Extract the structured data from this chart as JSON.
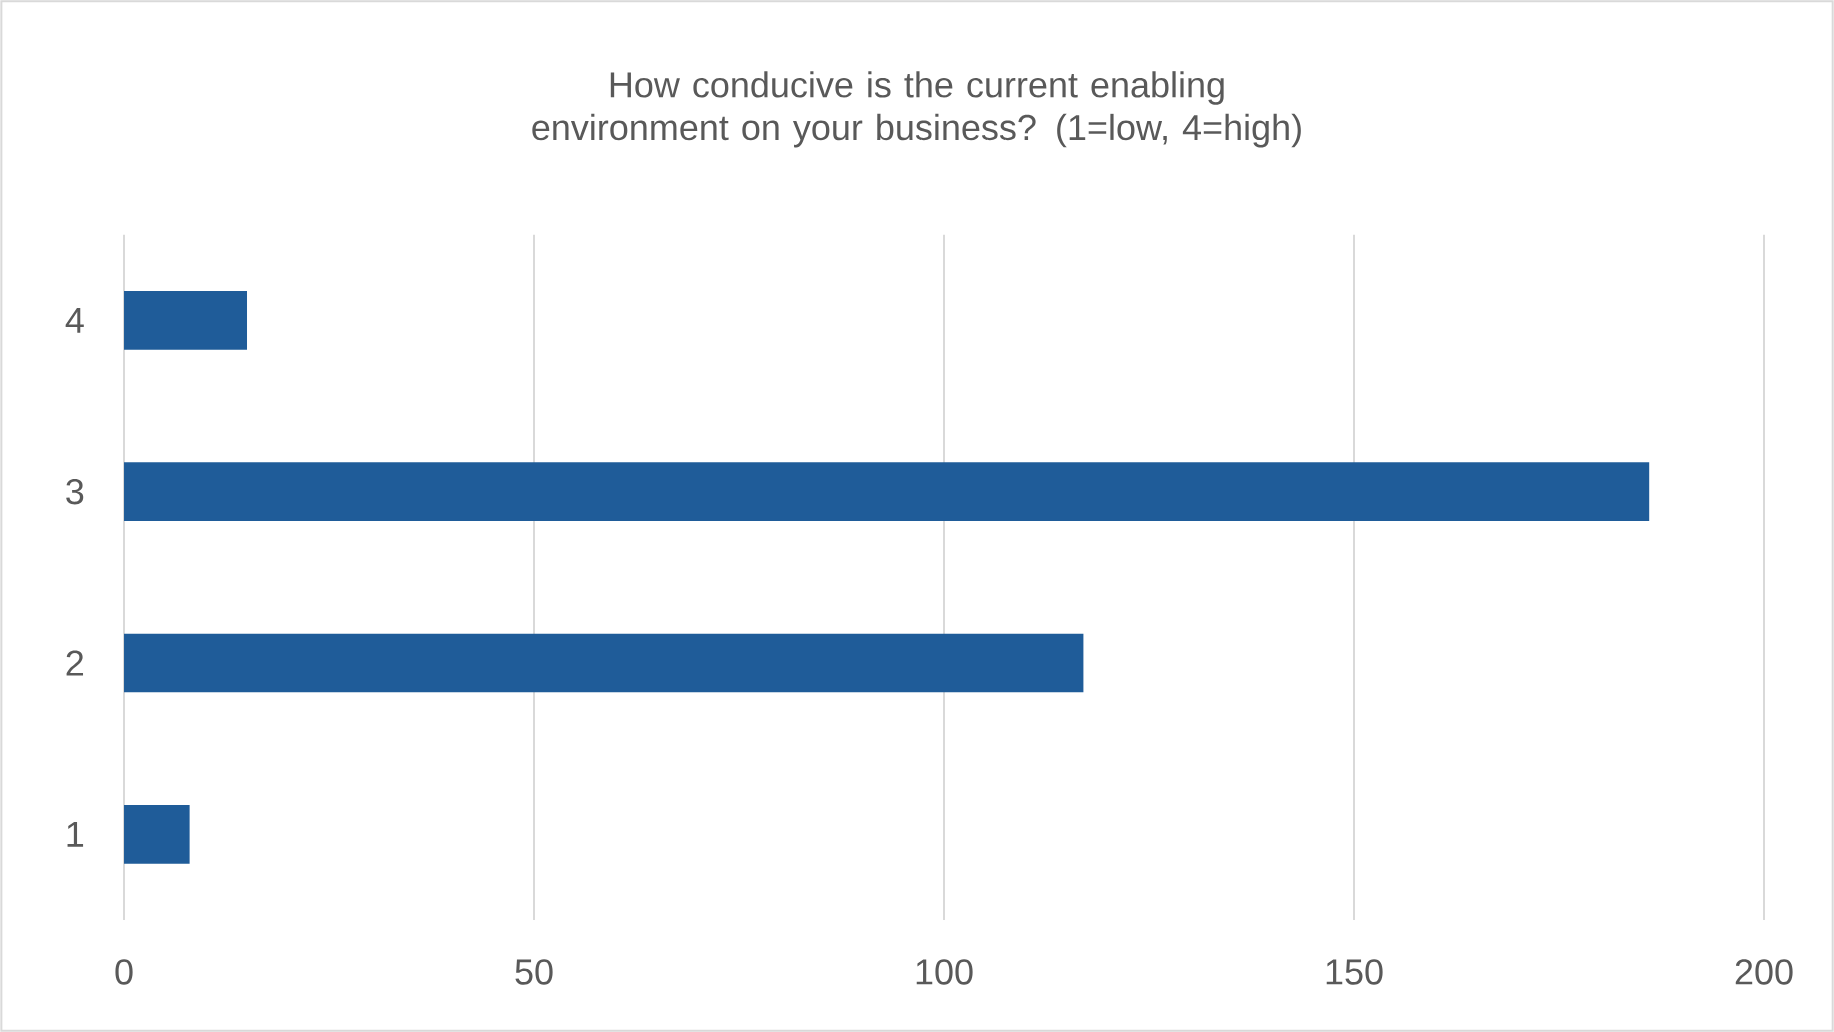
{
  "chart_data": {
    "type": "bar",
    "orientation": "horizontal",
    "title": "How conducive is the current enabling environment on your business? (1=low, 4=high)",
    "categories": [
      "4",
      "3",
      "2",
      "1"
    ],
    "values": [
      15,
      186,
      117,
      8
    ],
    "color": "#1f5c99",
    "xlim": [
      0,
      200
    ],
    "xticks": [
      0,
      50,
      100,
      150,
      200
    ],
    "grid": "x"
  }
}
